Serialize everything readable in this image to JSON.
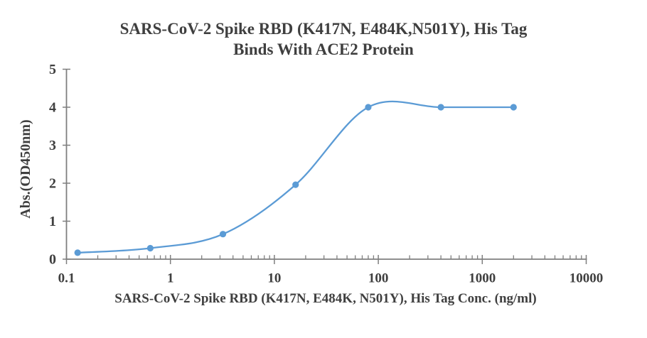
{
  "chart_data": {
    "type": "line",
    "title_line1": "SARS-CoV-2 Spike RBD (K417N, E484K,N501Y), His Tag",
    "title_line2": "Binds With ACE2 Protein",
    "xlabel": "SARS-CoV-2 Spike RBD (K417N, E484K, N501Y), His Tag Conc. (ng/ml)",
    "ylabel": "Abs.(OD450nm)",
    "x_scale": "log",
    "xlim": [
      0.1,
      10000
    ],
    "ylim": [
      0,
      5
    ],
    "x_tick_values": [
      0.1,
      1,
      10,
      100,
      1000,
      10000
    ],
    "x_tick_labels": [
      "0.1",
      "1",
      "10",
      "100",
      "1000",
      "10000"
    ],
    "y_tick_values": [
      0,
      1,
      2,
      3,
      4,
      5
    ],
    "y_tick_labels": [
      "0",
      "1",
      "2",
      "3",
      "4",
      "5"
    ],
    "grid": "off",
    "legend": "none",
    "series": [
      {
        "name": "SARS-CoV-2 Spike RBD (K417N, E484K, N501Y), His Tag",
        "x": [
          0.128,
          0.64,
          3.2,
          16,
          80,
          400,
          2000
        ],
        "y": [
          0.17,
          0.29,
          0.66,
          1.96,
          4.0,
          4.0,
          4.0
        ],
        "marker": "circle",
        "smooth": true
      }
    ],
    "colors": {
      "series_blue": "#5B9BD5",
      "axis_gray": "#7F7F7F",
      "text_gray": "#3F3F3F"
    }
  }
}
